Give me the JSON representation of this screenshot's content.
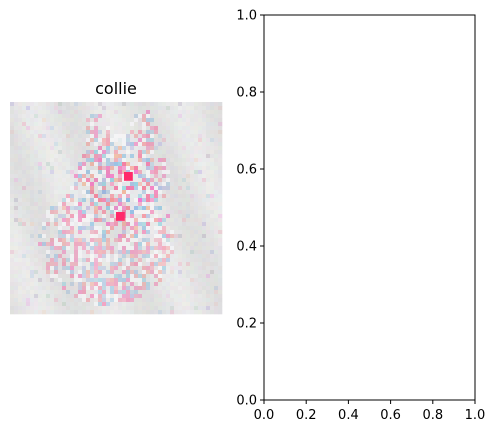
{
  "chart_data": [
    {
      "type": "heatmap",
      "title": "collie",
      "axes_visible": false,
      "description_colors": {
        "background": "#e4e4e4",
        "positive": "#ff2a6a",
        "negative": "#3b8fd8"
      }
    },
    {
      "type": "line",
      "title": "",
      "xlabel": "",
      "ylabel": "",
      "xlim": [
        0.0,
        1.0
      ],
      "ylim": [
        0.0,
        1.0
      ],
      "xticks": [
        "0.0",
        "0.2",
        "0.4",
        "0.6",
        "0.8",
        "1.0"
      ],
      "yticks": [
        "0.0",
        "0.2",
        "0.4",
        "0.6",
        "0.8",
        "1.0"
      ],
      "series": [],
      "grid": false
    }
  ]
}
